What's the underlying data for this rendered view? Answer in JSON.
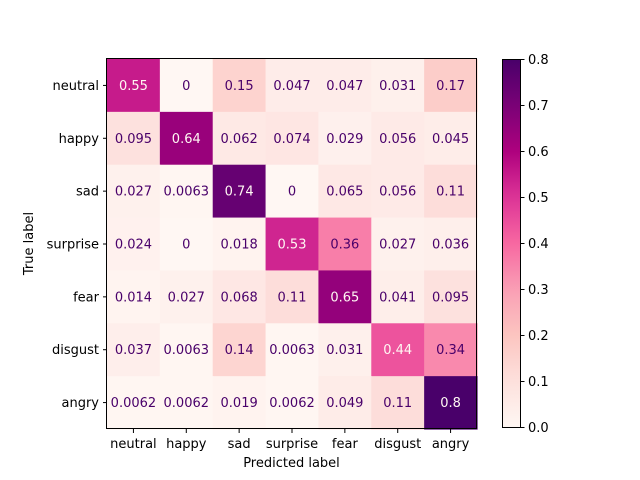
{
  "chart_data": {
    "type": "heatmap",
    "xlabel": "Predicted label",
    "ylabel": "True label",
    "x_categories": [
      "neutral",
      "happy",
      "sad",
      "surprise",
      "fear",
      "disgust",
      "angry"
    ],
    "y_categories": [
      "neutral",
      "happy",
      "sad",
      "surprise",
      "fear",
      "disgust",
      "angry"
    ],
    "values": [
      [
        0.55,
        0,
        0.15,
        0.047,
        0.047,
        0.031,
        0.17
      ],
      [
        0.095,
        0.64,
        0.062,
        0.074,
        0.029,
        0.056,
        0.045
      ],
      [
        0.027,
        0.0063,
        0.74,
        0,
        0.065,
        0.056,
        0.11
      ],
      [
        0.024,
        0,
        0.018,
        0.53,
        0.36,
        0.027,
        0.036
      ],
      [
        0.014,
        0.027,
        0.068,
        0.11,
        0.65,
        0.041,
        0.095
      ],
      [
        0.037,
        0.0063,
        0.14,
        0.0063,
        0.031,
        0.44,
        0.34
      ],
      [
        0.0062,
        0.0062,
        0.019,
        0.0062,
        0.049,
        0.11,
        0.8
      ]
    ],
    "colorbar": {
      "range": [
        0.0,
        0.8
      ],
      "ticks": [
        "0.0",
        "0.1",
        "0.2",
        "0.3",
        "0.4",
        "0.5",
        "0.6",
        "0.7",
        "0.8"
      ]
    },
    "colormap": "RdPu",
    "colors": {
      "low": "#fff7f3",
      "high": "#49006a",
      "text_light": "#fff7f3",
      "text_dark": "#49006a"
    },
    "grid": false
  }
}
